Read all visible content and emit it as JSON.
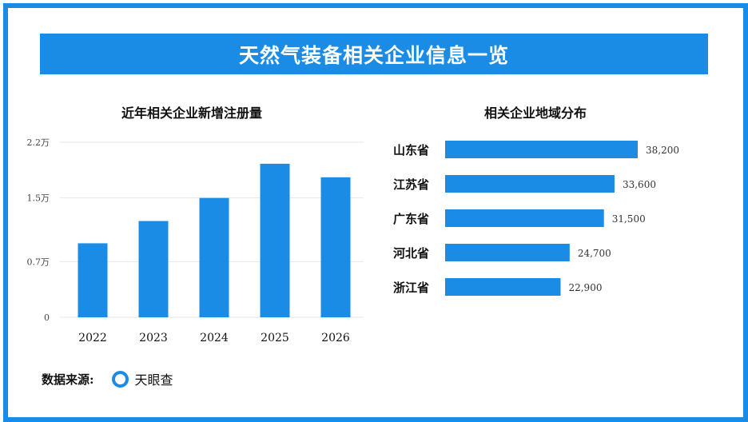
{
  "title": "天然气装备相关企业信息一览",
  "source": {
    "label": "数据来源:",
    "name": "天眼查",
    "logo_icon": "tianyancha-logo-icon"
  },
  "colors": {
    "accent": "#1a8ce6",
    "bar": "#1a8ce6",
    "grid": "#e6e6e6",
    "text": "#222222"
  },
  "chart_data": [
    {
      "type": "bar",
      "title": "近年相关企业新增注册量",
      "categories": [
        "2022",
        "2023",
        "2024",
        "2025",
        "2026"
      ],
      "values": [
        0.93,
        1.21,
        1.5,
        1.93,
        1.76
      ],
      "ylim": [
        0,
        2.2
      ],
      "yticks": [
        0,
        0.7,
        1.5,
        2.2
      ],
      "ytick_labels": [
        "0",
        "0.7万",
        "1.5万",
        "2.2万"
      ],
      "unit": "万",
      "grid": true
    },
    {
      "type": "bar",
      "orientation": "horizontal",
      "title": "相关企业地域分布",
      "categories": [
        "山东省",
        "江苏省",
        "广东省",
        "河北省",
        "浙江省"
      ],
      "values": [
        38200,
        33600,
        31500,
        24700,
        22900
      ],
      "value_labels": [
        "38,200",
        "33,600",
        "31,500",
        "24,700",
        "22,900"
      ],
      "grid": false
    }
  ]
}
